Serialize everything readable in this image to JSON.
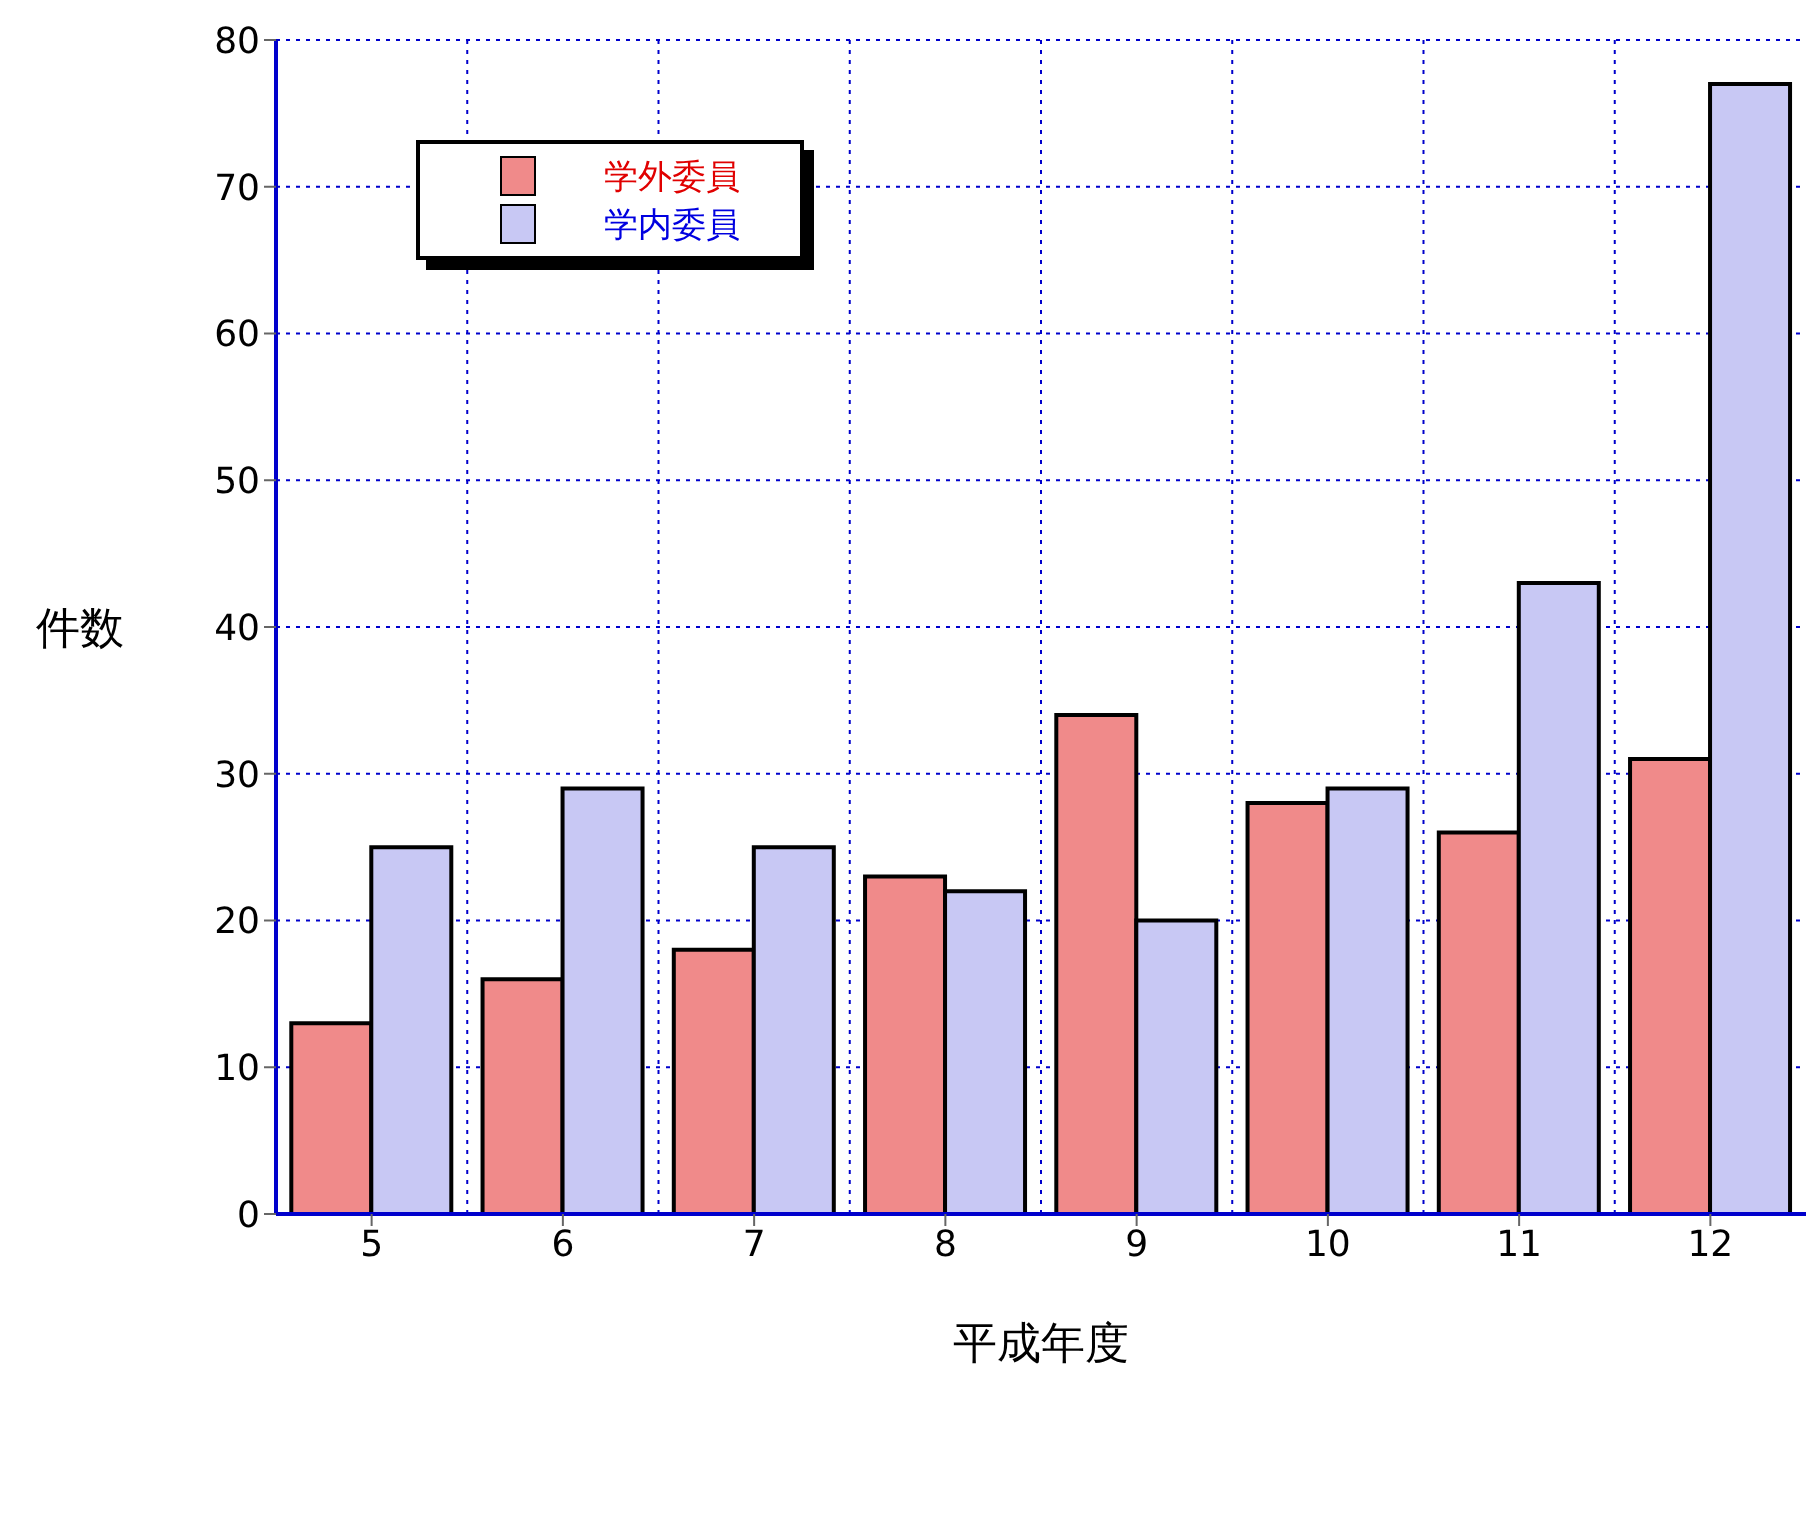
{
  "chart_data": {
    "type": "bar",
    "xlabel": "平成年度",
    "ylabel": "件数",
    "categories": [
      "5",
      "6",
      "7",
      "8",
      "9",
      "10",
      "11",
      "12"
    ],
    "series": [
      {
        "name": "学外委員",
        "color": "#f08a8a",
        "values": [
          13,
          16,
          18,
          23,
          34,
          28,
          26,
          31
        ]
      },
      {
        "name": "学内委員",
        "color": "#c8c8f4",
        "values": [
          25,
          29,
          25,
          22,
          20,
          29,
          43,
          77
        ]
      }
    ],
    "ylim": [
      0,
      80
    ],
    "yticks": [
      0,
      10,
      20,
      30,
      40,
      50,
      60,
      70,
      80
    ],
    "grid": true,
    "legend": "top left"
  }
}
